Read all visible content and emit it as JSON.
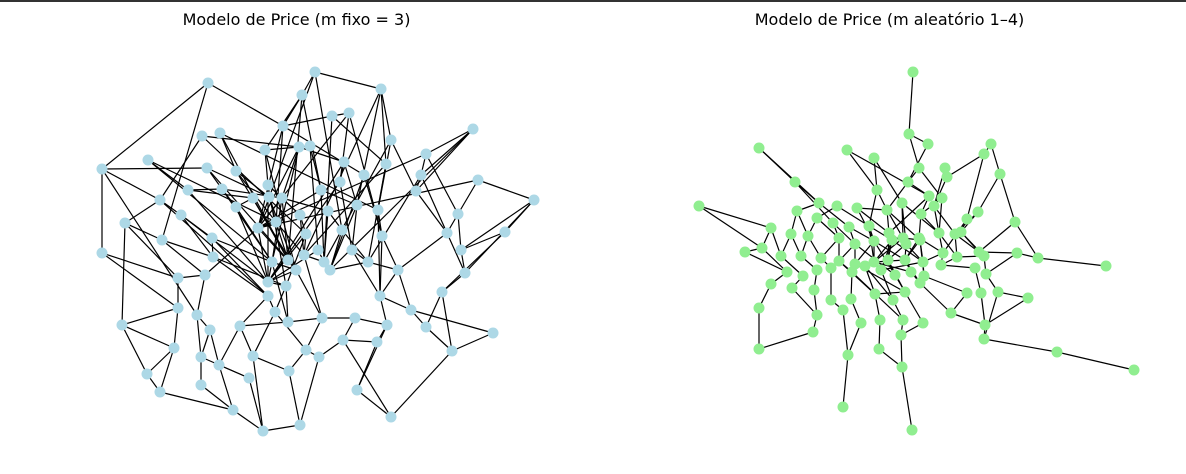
{
  "figure": {
    "panels": [
      {
        "title": "Modelo de Price (m fixo = 3)",
        "node_color": "#add8e6",
        "edge_color": "#000000"
      },
      {
        "title": "Modelo de Price (m aleatório 1–4)",
        "node_color": "#90ee90",
        "edge_color": "#000000"
      }
    ]
  }
}
